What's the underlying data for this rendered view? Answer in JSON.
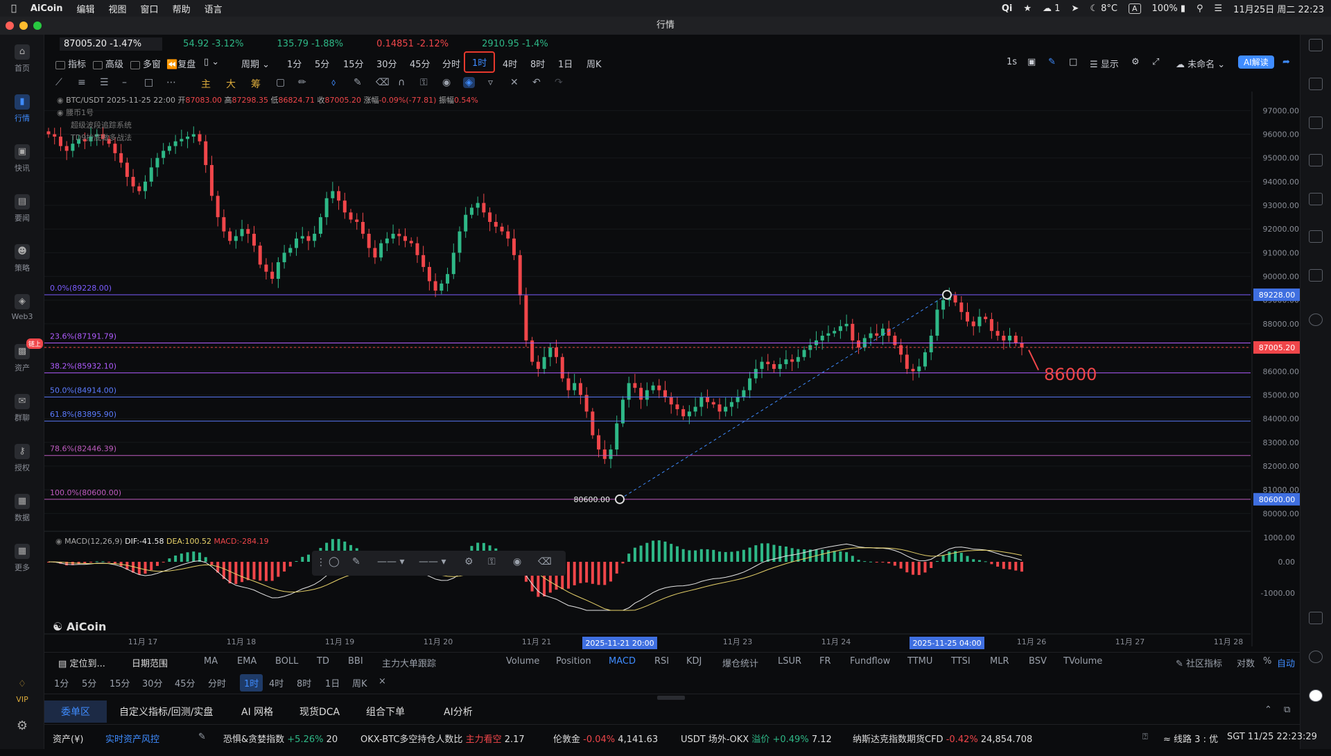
{
  "menubar": {
    "app": "AiCoin",
    "items": [
      "编辑",
      "视图",
      "窗口",
      "帮助",
      "语言"
    ],
    "weather": "8°C",
    "wechat_count": "1",
    "battery": "100%",
    "datetime": "11月25日 周二 22:23",
    "input_method": "A"
  },
  "window": {
    "title": "行情"
  },
  "sidebar": {
    "items": [
      {
        "label": "首页",
        "icon": "home-icon"
      },
      {
        "label": "行情",
        "icon": "chart-icon"
      },
      {
        "label": "快讯",
        "icon": "news-icon"
      },
      {
        "label": "要闻",
        "icon": "doc-icon"
      },
      {
        "label": "策略",
        "icon": "robot-icon"
      },
      {
        "label": "Web3",
        "icon": "web3-icon"
      },
      {
        "label": "资产",
        "icon": "wallet-icon"
      },
      {
        "label": "群聊",
        "icon": "chat-icon"
      },
      {
        "label": "授权",
        "icon": "auth-icon"
      },
      {
        "label": "数据",
        "icon": "data-icon"
      },
      {
        "label": "更多",
        "icon": "grid-icon"
      }
    ],
    "asset_badge": "链上",
    "vip": "VIP"
  },
  "quotes": [
    {
      "price": "87005.20",
      "change": "-1.47%"
    },
    {
      "price": "54.92",
      "change": "-3.12%"
    },
    {
      "price": "135.79",
      "change": "-1.88%"
    },
    {
      "price": "0.14851",
      "change": "-2.12%"
    },
    {
      "price": "2910.95",
      "change": "-1.4%"
    }
  ],
  "toolbar": {
    "indicator": "指标",
    "advanced": "高级",
    "multi": "多窗",
    "replay": "复盘",
    "period": "周期",
    "intervals": [
      "1分",
      "5分",
      "15分",
      "30分",
      "45分",
      "分时",
      "1时",
      "4时",
      "8时",
      "1日",
      "周K"
    ],
    "active_interval": "1时",
    "refresh": "1s",
    "display": "显示",
    "name": "未命名",
    "ai": "AI解读",
    "draw_labels": [
      "主",
      "大",
      "筹"
    ]
  },
  "chart_data": {
    "type": "candlestick",
    "symbol": "BTC/USDT",
    "time": "2025-11-25 22:00",
    "ohlc_label": {
      "open": "87083.00",
      "high": "87298.35",
      "low": "86824.71",
      "close": "87005.20",
      "change": "-0.09%(-77.81)",
      "amplitude": "0.54%"
    },
    "legend_labels": {
      "open": "开",
      "high": "高",
      "low": "低",
      "close": "收",
      "change": "涨幅",
      "amplitude": "振幅"
    },
    "overlays": [
      "腰币1号",
      "超级波段追踪系统",
      "TD9抄底做多战法"
    ],
    "y_ticks": [
      97000,
      96000,
      95000,
      94000,
      93000,
      92000,
      91000,
      90000,
      89000,
      88000,
      87000,
      86000,
      85000,
      84000,
      83000,
      82000,
      81000,
      80000
    ],
    "y_tick_labels": [
      "97000.00",
      "96000.00",
      "95000.00",
      "94000.00",
      "93000.00",
      "92000.00",
      "91000.00",
      "90000.00",
      "89000.00",
      "88000.00",
      "87000.00",
      "86000.00",
      "85000.00",
      "84000.00",
      "83000.00",
      "82000.00",
      "81000.00",
      "80000.00"
    ],
    "ylim": [
      79600,
      97800
    ],
    "x_labels": [
      "11月 17",
      "11月 18",
      "11月 19",
      "11月 20",
      "11月 21",
      "11月 23",
      "11月 24",
      "11月 26",
      "11月 27",
      "11月 28"
    ],
    "x_highlight": [
      "2025-11-21 20:00",
      "2025-11-25 04:00"
    ],
    "fib_levels": [
      {
        "label": "0.0%(89228.00)",
        "value": 89228.0,
        "color": "#7b5cff"
      },
      {
        "label": "23.6%(87191.79)",
        "value": 87191.79,
        "color": "#b05cff"
      },
      {
        "label": "38.2%(85932.10)",
        "value": 85932.1,
        "color": "#b05cff"
      },
      {
        "label": "50.0%(84914.00)",
        "value": 84914.0,
        "color": "#5c7cff"
      },
      {
        "label": "61.8%(83895.90)",
        "value": 83895.9,
        "color": "#5c7cff"
      },
      {
        "label": "78.6%(82446.39)",
        "value": 82446.39,
        "color": "#c05cc0"
      },
      {
        "label": "100.0%(80600.00)",
        "value": 80600.0,
        "color": "#c05cc0"
      }
    ],
    "price_tags": [
      {
        "label": "89228.00",
        "value": 89228.0
      },
      {
        "label": "87005.20",
        "value": 87005.2
      },
      {
        "label": "80600.00",
        "value": 80600.0
      }
    ],
    "low_marker": "80600.00",
    "annotation": "86000",
    "closes": [
      96000,
      95900,
      95500,
      95300,
      95600,
      95800,
      95700,
      95900,
      96000,
      95800,
      95600,
      95200,
      94800,
      94200,
      93800,
      93600,
      94000,
      94600,
      95000,
      95300,
      95500,
      95700,
      95800,
      95900,
      96000,
      95700,
      94700,
      93400,
      92500,
      91900,
      91500,
      91700,
      92000,
      91800,
      91300,
      90500,
      90200,
      89900,
      90600,
      91000,
      91200,
      91600,
      91700,
      91500,
      91800,
      92500,
      93300,
      93600,
      93200,
      92700,
      92400,
      92300,
      91800,
      91200,
      90800,
      91400,
      91600,
      91800,
      91700,
      91500,
      91400,
      90900,
      90400,
      89800,
      89400,
      89700,
      90100,
      91000,
      91900,
      92600,
      92900,
      93100,
      92700,
      92300,
      92100,
      91900,
      91600,
      90900,
      89200,
      87300,
      86400,
      86100,
      86600,
      87000,
      86600,
      85700,
      85200,
      85500,
      85000,
      84300,
      83300,
      82700,
      82300,
      82700,
      83800,
      84800,
      85500,
      85300,
      84800,
      85200,
      85400,
      85200,
      84900,
      84600,
      84400,
      84100,
      84300,
      84500,
      84900,
      84700,
      84600,
      84300,
      84500,
      84700,
      84900,
      85200,
      85700,
      86100,
      86400,
      86300,
      86100,
      86300,
      86500,
      86400,
      86600,
      86900,
      87100,
      87300,
      87500,
      87600,
      87700,
      87900,
      88000,
      87300,
      87000,
      87400,
      87600,
      87500,
      87800,
      87500,
      87100,
      86700,
      86100,
      86000,
      86200,
      86800,
      87500,
      88600,
      89000,
      89200,
      88900,
      88500,
      88100,
      87900,
      88300,
      88200,
      87700,
      87500,
      87300,
      87500,
      87200,
      87005
    ],
    "macd": {
      "label": "MACD(12,26,9)",
      "dif": "DIF:-41.58",
      "dea": "DEA:100.52",
      "hist": "MACD:-284.19",
      "y_ticks": [
        "1000.00",
        "0.00",
        "-1000.00"
      ]
    }
  },
  "draw_toolbar_float": {
    "line1": "——",
    "line2": "——"
  },
  "bottom": {
    "locate": "定位到...",
    "date_range": "日期范围",
    "main_indicators": [
      "MA",
      "EMA",
      "BOLL",
      "TD",
      "BBI",
      "主力大单跟踪"
    ],
    "sub_indicators": [
      "Volume",
      "Position",
      "MACD",
      "RSI",
      "KDJ",
      "爆仓统计",
      "LSUR",
      "FR",
      "Fundflow",
      "TTMU",
      "TTSI",
      "MLR",
      "BSV",
      "TVolume"
    ],
    "active_sub": "MACD",
    "community": "社区指标",
    "log": "对数",
    "percent": "%",
    "auto": "自动",
    "intervals": [
      "1分",
      "5分",
      "15分",
      "30分",
      "45分",
      "分时",
      "1时",
      "4时",
      "8时",
      "1日",
      "周K"
    ],
    "active_interval": "1时",
    "tabs": [
      "委单区",
      "自定义指标/回测/实盘",
      "AI 网格",
      "现货DCA",
      "组合下单",
      "AI分析"
    ],
    "active_tab": "委单区",
    "status": {
      "asset": "资产(¥)",
      "risk": "实时资产风控",
      "fear_label": "恐惧&贪婪指数",
      "fear_change": "+5.26%",
      "fear_value": "20",
      "okx_label": "OKX-BTC多空持仓人数比",
      "okx_tag": "主力看空",
      "okx_value": "2.17",
      "fund_label": "伦敦金",
      "fund_change": "-0.04%",
      "fund_value": "4,141.63",
      "usdt_label": "USDT 场外-OKX",
      "usdt_tag": "溢价 +0.49%",
      "usdt_value": "7.12",
      "nasdaq_label": "纳斯达克指数期货CFD",
      "nasdaq_change": "-0.42%",
      "nasdaq_value": "24,854.708",
      "line": "线路 3 : 优",
      "time": "SGT 11/25 22:23:29"
    }
  },
  "watermark": "AiCoin",
  "colors": {
    "up": "#2eb887",
    "down": "#f0464a",
    "accent": "#3f8cff",
    "bg": "#0b0c0e"
  }
}
